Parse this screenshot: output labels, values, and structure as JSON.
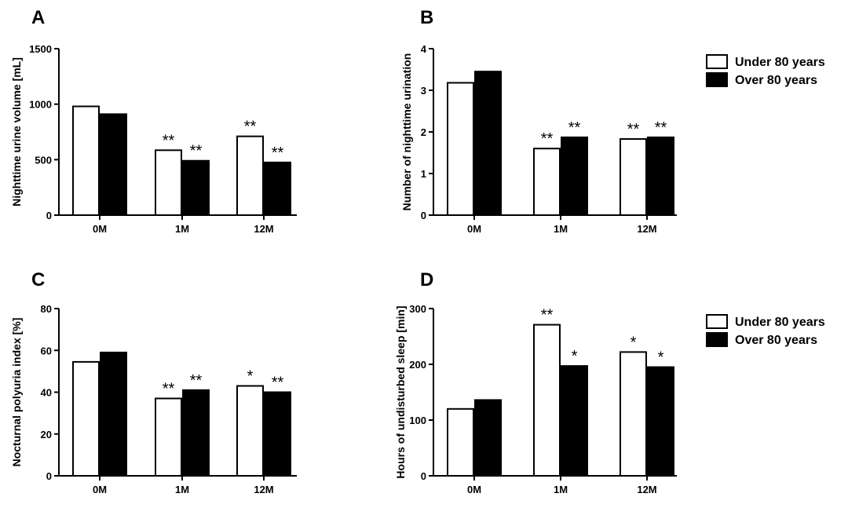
{
  "legend": {
    "under_label": "Under 80 years",
    "over_label": "Over 80 years",
    "under_color": "#ffffff",
    "over_color": "#000000"
  },
  "chart_data": [
    {
      "panel": "A",
      "type": "bar",
      "title": "",
      "ylabel": "Nighttime urine  volume [mL]",
      "xlabel": "",
      "categories": [
        "0M",
        "1M",
        "12M"
      ],
      "ylim": [
        0,
        1500
      ],
      "yticks": [
        0,
        500,
        1000,
        1500
      ],
      "series": [
        {
          "name": "Under 80 years",
          "values": [
            980,
            585,
            710
          ],
          "significance": [
            "",
            "**",
            "**"
          ]
        },
        {
          "name": "Over 80 years",
          "values": [
            910,
            490,
            475
          ],
          "significance": [
            "",
            "**",
            "**"
          ]
        }
      ]
    },
    {
      "panel": "B",
      "type": "bar",
      "title": "",
      "ylabel": "Number of nighttime urination",
      "xlabel": "",
      "categories": [
        "0M",
        "1M",
        "12M"
      ],
      "ylim": [
        0,
        4
      ],
      "yticks": [
        0,
        1,
        2,
        3,
        4
      ],
      "series": [
        {
          "name": "Under 80 years",
          "values": [
            3.18,
            1.6,
            1.83
          ],
          "significance": [
            "",
            "**",
            "**"
          ]
        },
        {
          "name": "Over 80 years",
          "values": [
            3.45,
            1.87,
            1.87
          ],
          "significance": [
            "",
            "**",
            "**"
          ]
        }
      ]
    },
    {
      "panel": "C",
      "type": "bar",
      "title": "",
      "ylabel": "Nocturnal polyuria index [%]",
      "xlabel": "",
      "categories": [
        "0M",
        "1M",
        "12M"
      ],
      "ylim": [
        0,
        80
      ],
      "yticks": [
        0,
        20,
        40,
        60,
        80
      ],
      "series": [
        {
          "name": "Under 80 years",
          "values": [
            54.5,
            37,
            43
          ],
          "significance": [
            "",
            "**",
            "*"
          ]
        },
        {
          "name": "Over 80 years",
          "values": [
            59,
            41,
            40
          ],
          "significance": [
            "",
            "**",
            "**"
          ]
        }
      ]
    },
    {
      "panel": "D",
      "type": "bar",
      "title": "",
      "ylabel": "Hours of undisturbed sleep [min]",
      "xlabel": "",
      "categories": [
        "0M",
        "1M",
        "12M"
      ],
      "ylim": [
        0,
        300
      ],
      "yticks": [
        0,
        100,
        200,
        300
      ],
      "series": [
        {
          "name": "Under 80 years",
          "values": [
            120,
            271,
            222
          ],
          "significance": [
            "",
            "**",
            "*"
          ]
        },
        {
          "name": "Over 80 years",
          "values": [
            136,
            197,
            195
          ],
          "significance": [
            "",
            "*",
            "*"
          ]
        }
      ]
    }
  ]
}
